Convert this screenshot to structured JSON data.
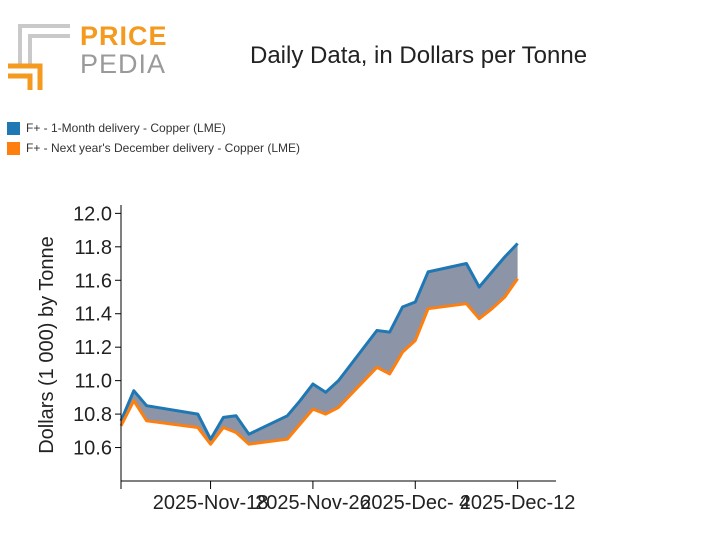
{
  "logo": {
    "word1": "PRICE",
    "word2": "PEDIA"
  },
  "title": "Daily Data, in Dollars per Tonne",
  "legend": [
    {
      "label": "F+ - 1-Month delivery - Copper (LME)",
      "color": "#1f77b4"
    },
    {
      "label": "F+ - Next year's December delivery - Copper (LME)",
      "color": "#ff7f0e"
    }
  ],
  "chart_data": {
    "type": "area",
    "ylabel": "Dollars (1 000) by Tonne",
    "ylim": [
      10.4,
      12.05
    ],
    "yticks": [
      "10.6",
      "10.8",
      "11.0",
      "11.2",
      "11.4",
      "11.6",
      "11.8",
      "12.0"
    ],
    "xlim": [
      "2025-11-11",
      "2025-12-15"
    ],
    "xticks": [
      {
        "date": "2025-11-18",
        "label": "2025-Nov-18"
      },
      {
        "date": "2025-11-26",
        "label": "2025-Nov-26"
      },
      {
        "date": "2025-12-04",
        "label": "2025-Dec- 4"
      },
      {
        "date": "2025-12-12",
        "label": "2025-Dec-12"
      }
    ],
    "fill_between": "#8c95a7",
    "x": [
      "2025-11-11",
      "2025-11-12",
      "2025-11-13",
      "2025-11-17",
      "2025-11-18",
      "2025-11-19",
      "2025-11-20",
      "2025-11-21",
      "2025-11-24",
      "2025-11-25",
      "2025-11-26",
      "2025-11-27",
      "2025-11-28",
      "2025-12-01",
      "2025-12-02",
      "2025-12-03",
      "2025-12-04",
      "2025-12-05",
      "2025-12-08",
      "2025-12-09",
      "2025-12-10",
      "2025-12-11",
      "2025-12-12"
    ],
    "series": [
      {
        "name": "F+ - 1-Month delivery - Copper (LME)",
        "color": "#1f77b4",
        "values": [
          10.76,
          10.94,
          10.85,
          10.8,
          10.65,
          10.78,
          10.79,
          10.68,
          10.79,
          10.88,
          10.98,
          10.93,
          11.0,
          11.3,
          11.29,
          11.44,
          11.47,
          11.65,
          11.7,
          11.56,
          11.65,
          11.74,
          11.82
        ]
      },
      {
        "name": "F+ - Next year's December delivery - Copper (LME)",
        "color": "#ff7f0e",
        "values": [
          10.73,
          10.88,
          10.76,
          10.72,
          10.62,
          10.72,
          10.69,
          10.62,
          10.65,
          10.74,
          10.83,
          10.8,
          10.84,
          11.08,
          11.04,
          11.17,
          11.24,
          11.43,
          11.46,
          11.37,
          11.43,
          11.5,
          11.61
        ]
      }
    ]
  }
}
